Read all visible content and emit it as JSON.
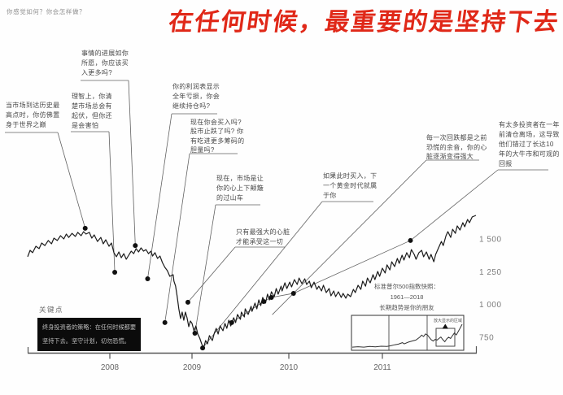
{
  "header": {
    "question": "你感觉如何？你会怎样做？"
  },
  "title": {
    "text": "在任何时候，最重要的是坚持下去",
    "color": "#e02818"
  },
  "key_point": {
    "label": "关键点",
    "text": "终身投资者的策略：在任何时候都要\n坚持下去。坚守计划，切勿恐慌。"
  },
  "chart_data": {
    "type": "line",
    "title": "在任何时候，最重要的是坚持下去",
    "xlabel": "",
    "ylabel": "",
    "x_range": [
      2007,
      2012
    ],
    "ylim": [
      640,
      1700
    ],
    "x_ticks": [
      2008,
      2009,
      2010,
      2011
    ],
    "y_ticks": [
      {
        "value": 1500,
        "label": "1 500"
      },
      {
        "value": 1250,
        "label": "1 250"
      },
      {
        "value": 1000,
        "label": "1 000"
      },
      {
        "value": 750,
        "label": "750"
      }
    ],
    "series": [
      {
        "name": "标准普尔500指数",
        "points": [
          [
            2007.0,
            1364
          ],
          [
            2007.03,
            1413
          ],
          [
            2007.06,
            1395
          ],
          [
            2007.1,
            1444
          ],
          [
            2007.14,
            1426
          ],
          [
            2007.17,
            1469
          ],
          [
            2007.21,
            1450
          ],
          [
            2007.25,
            1488
          ],
          [
            2007.29,
            1463
          ],
          [
            2007.32,
            1506
          ],
          [
            2007.36,
            1488
          ],
          [
            2007.4,
            1525
          ],
          [
            2007.44,
            1500
          ],
          [
            2007.47,
            1537
          ],
          [
            2007.5,
            1512
          ],
          [
            2007.54,
            1543
          ],
          [
            2007.58,
            1519
          ],
          [
            2007.61,
            1550
          ],
          [
            2007.65,
            1525
          ],
          [
            2007.68,
            1556
          ],
          [
            2007.71,
            1537
          ],
          [
            2007.75,
            1550
          ],
          [
            2007.78,
            1506
          ],
          [
            2007.81,
            1531
          ],
          [
            2007.85,
            1481
          ],
          [
            2007.89,
            1512
          ],
          [
            2007.92,
            1463
          ],
          [
            2007.95,
            1494
          ],
          [
            2007.99,
            1444
          ],
          [
            2008.02,
            1469
          ],
          [
            2008.05,
            1395
          ],
          [
            2008.08,
            1364
          ],
          [
            2008.11,
            1401
          ],
          [
            2008.14,
            1357
          ],
          [
            2008.17,
            1388
          ],
          [
            2008.2,
            1345
          ],
          [
            2008.23,
            1376
          ],
          [
            2008.26,
            1407
          ],
          [
            2008.29,
            1388
          ],
          [
            2008.32,
            1426
          ],
          [
            2008.35,
            1401
          ],
          [
            2008.38,
            1432
          ],
          [
            2008.41,
            1407
          ],
          [
            2008.44,
            1419
          ],
          [
            2008.47,
            1388
          ],
          [
            2008.5,
            1407
          ],
          [
            2008.52,
            1370
          ],
          [
            2008.55,
            1395
          ],
          [
            2008.58,
            1351
          ],
          [
            2008.61,
            1370
          ],
          [
            2008.64,
            1320
          ],
          [
            2008.67,
            1283
          ],
          [
            2008.7,
            1258
          ],
          [
            2008.73,
            1215
          ],
          [
            2008.77,
            1227
          ],
          [
            2008.78,
            1178
          ],
          [
            2008.8,
            1141
          ],
          [
            2008.82,
            1060
          ],
          [
            2008.84,
            967
          ],
          [
            2008.86,
            893
          ],
          [
            2008.88,
            942
          ],
          [
            2008.9,
            880
          ],
          [
            2008.92,
            942
          ],
          [
            2008.94,
            899
          ],
          [
            2008.96,
            831
          ],
          [
            2008.98,
            874
          ],
          [
            2009.0,
            856
          ],
          [
            2009.02,
            800
          ],
          [
            2009.04,
            837
          ],
          [
            2009.06,
            775
          ],
          [
            2009.08,
            744
          ],
          [
            2009.1,
            700
          ],
          [
            2009.12,
            669
          ],
          [
            2009.14,
            725
          ],
          [
            2009.16,
            700
          ],
          [
            2009.18,
            763
          ],
          [
            2009.21,
            725
          ],
          [
            2009.23,
            781
          ],
          [
            2009.25,
            818
          ],
          [
            2009.27,
            775
          ],
          [
            2009.29,
            837
          ],
          [
            2009.32,
            800
          ],
          [
            2009.34,
            856
          ],
          [
            2009.36,
            818
          ],
          [
            2009.38,
            880
          ],
          [
            2009.4,
            837
          ],
          [
            2009.43,
            899
          ],
          [
            2009.45,
            862
          ],
          [
            2009.47,
            924
          ],
          [
            2009.5,
            887
          ],
          [
            2009.51,
            942
          ],
          [
            2009.54,
            905
          ],
          [
            2009.55,
            967
          ],
          [
            2009.58,
            924
          ],
          [
            2009.61,
            986
          ],
          [
            2009.62,
            948
          ],
          [
            2009.65,
            1011
          ],
          [
            2009.67,
            967
          ],
          [
            2009.69,
            1035
          ],
          [
            2009.71,
            992
          ],
          [
            2009.73,
            1054
          ],
          [
            2009.76,
            1011
          ],
          [
            2009.78,
            1079
          ],
          [
            2009.8,
            1035
          ],
          [
            2009.82,
            1097
          ],
          [
            2009.85,
            1060
          ],
          [
            2009.87,
            1122
          ],
          [
            2009.89,
            1079
          ],
          [
            2009.92,
            1140
          ],
          [
            2009.93,
            1103
          ],
          [
            2009.96,
            1165
          ],
          [
            2009.98,
            1122
          ],
          [
            2010.01,
            1171
          ],
          [
            2010.03,
            1134
          ],
          [
            2010.06,
            1190
          ],
          [
            2010.09,
            1153
          ],
          [
            2010.11,
            1202
          ],
          [
            2010.14,
            1159
          ],
          [
            2010.17,
            1196
          ],
          [
            2010.19,
            1153
          ],
          [
            2010.22,
            1178
          ],
          [
            2010.24,
            1128
          ],
          [
            2010.27,
            1171
          ],
          [
            2010.3,
            1116
          ],
          [
            2010.32,
            1140
          ],
          [
            2010.35,
            1103
          ],
          [
            2010.37,
            1147
          ],
          [
            2010.4,
            1091
          ],
          [
            2010.43,
            1122
          ],
          [
            2010.45,
            1066
          ],
          [
            2010.48,
            1103
          ],
          [
            2010.5,
            1060
          ],
          [
            2010.53,
            1097
          ],
          [
            2010.56,
            1054
          ],
          [
            2010.58,
            1085
          ],
          [
            2010.61,
            1048
          ],
          [
            2010.63,
            1079
          ],
          [
            2010.66,
            1060
          ],
          [
            2010.69,
            1116
          ],
          [
            2010.71,
            1091
          ],
          [
            2010.74,
            1147
          ],
          [
            2010.77,
            1116
          ],
          [
            2010.79,
            1178
          ],
          [
            2010.82,
            1140
          ],
          [
            2010.84,
            1202
          ],
          [
            2010.87,
            1165
          ],
          [
            2010.9,
            1227
          ],
          [
            2010.92,
            1190
          ],
          [
            2010.95,
            1252
          ],
          [
            2010.97,
            1215
          ],
          [
            2011.0,
            1277
          ],
          [
            2011.03,
            1240
          ],
          [
            2011.05,
            1302
          ],
          [
            2011.08,
            1264
          ],
          [
            2011.1,
            1326
          ],
          [
            2011.13,
            1289
          ],
          [
            2011.16,
            1351
          ],
          [
            2011.18,
            1314
          ],
          [
            2011.21,
            1376
          ],
          [
            2011.23,
            1339
          ],
          [
            2011.26,
            1395
          ],
          [
            2011.29,
            1357
          ],
          [
            2011.31,
            1419
          ],
          [
            2011.34,
            1382
          ],
          [
            2011.36,
            1345
          ],
          [
            2011.39,
            1395
          ],
          [
            2011.42,
            1413
          ],
          [
            2011.44,
            1364
          ],
          [
            2011.47,
            1401
          ],
          [
            2011.5,
            1345
          ],
          [
            2011.52,
            1382
          ],
          [
            2011.55,
            1326
          ],
          [
            2011.57,
            1382
          ],
          [
            2011.6,
            1432
          ],
          [
            2011.63,
            1481
          ],
          [
            2011.65,
            1450
          ],
          [
            2011.68,
            1525
          ],
          [
            2011.7,
            1556
          ],
          [
            2011.73,
            1512
          ],
          [
            2011.75,
            1574
          ],
          [
            2011.78,
            1543
          ],
          [
            2011.8,
            1599
          ],
          [
            2011.83,
            1568
          ],
          [
            2011.86,
            1624
          ],
          [
            2011.88,
            1593
          ],
          [
            2011.91,
            1649
          ],
          [
            2011.93,
            1624
          ],
          [
            2011.96,
            1668
          ],
          [
            2012.0,
            1680
          ]
        ]
      }
    ],
    "markers": [
      {
        "id": "D1",
        "year": 2007.7,
        "value": 1581
      },
      {
        "id": "D2",
        "year": 2008.06,
        "value": 1246
      },
      {
        "id": "D3",
        "year": 2008.31,
        "value": 1450
      },
      {
        "id": "D4",
        "year": 2008.46,
        "value": 1196
      },
      {
        "id": "D5",
        "year": 2008.67,
        "value": 862
      },
      {
        "id": "D6",
        "year": 2008.95,
        "value": 1017
      },
      {
        "id": "D7",
        "year": 2009.03,
        "value": 781
      },
      {
        "id": "D8",
        "year": 2009.11,
        "value": 669
      },
      {
        "id": "D9",
        "year": 2009.41,
        "value": 862
      },
      {
        "id": "D10",
        "year": 2009.74,
        "value": 1023
      },
      {
        "id": "D11",
        "year": 2009.82,
        "value": 1054
      },
      {
        "id": "D12",
        "year": 2010.05,
        "value": 1085
      },
      {
        "id": "D13",
        "year": 2011.3,
        "value": 1488
      }
    ],
    "annotations": [
      {
        "id": "a1",
        "marker": "D1",
        "text": "当市场到达历史最\n高点时，你仿佛置\n身于世界之巅"
      },
      {
        "id": "a2",
        "marker": "D3",
        "text": "事情的进展如你\n所愿，你应该买\n入更多吗?"
      },
      {
        "id": "a3",
        "marker": "D2",
        "text": "理智上，你清\n楚市场总会有\n起伏，但你还\n是会害怕"
      },
      {
        "id": "a4",
        "marker": "D4",
        "text": "你的利润表显示\n全年亏损，你会\n继续持仓吗?"
      },
      {
        "id": "a5",
        "marker": "D5",
        "text": "现在你会买入吗?\n股市止跌了吗? 你\n有吃进更多筹码的\n胆量吗?"
      },
      {
        "id": "a6",
        "marker": "D7",
        "text": "现在，市场是让\n你的心上下颠簸\n的过山车"
      },
      {
        "id": "a7",
        "marker": "D6",
        "text": "只有最强大的心脏\n才能承受这一切"
      },
      {
        "id": "a8",
        "marker": "D8",
        "text": "如果此时买入，下\n一个黄金时代就属\n于你"
      },
      {
        "id": "a9",
        "marker": "D12",
        "text": "每一次回跌都是之前\n恐慌的余音，你的心\n脏逐渐变得强大"
      },
      {
        "id": "a10",
        "marker": "D13",
        "text": "有太多投资者在一年\n前清仓离场，这导致\n他们错过了长达10\n年的大牛市和可观的\n回报"
      }
    ],
    "inset": {
      "type": "line",
      "caption": "标准普尔500指数快照：\n1961—2018\n长期趋势是你的朋友",
      "zoom_label": "放大显示的区域",
      "x_range": [
        1961,
        2018
      ],
      "points": [
        [
          1961,
          0.03
        ],
        [
          1964,
          0.05
        ],
        [
          1967,
          0.03
        ],
        [
          1970,
          0.06
        ],
        [
          1973,
          0.04
        ],
        [
          1976,
          0.07
        ],
        [
          1979,
          0.06
        ],
        [
          1981,
          0.09
        ],
        [
          1983,
          0.13
        ],
        [
          1985,
          0.16
        ],
        [
          1987,
          0.22
        ],
        [
          1988,
          0.17
        ],
        [
          1990,
          0.24
        ],
        [
          1992,
          0.29
        ],
        [
          1994,
          0.33
        ],
        [
          1996,
          0.45
        ],
        [
          1997,
          0.54
        ],
        [
          1998,
          0.48
        ],
        [
          1999,
          0.59
        ],
        [
          2000,
          0.55
        ],
        [
          2001,
          0.44
        ],
        [
          2002,
          0.34
        ],
        [
          2003,
          0.29
        ],
        [
          2004,
          0.36
        ],
        [
          2005,
          0.33
        ],
        [
          2006,
          0.4
        ],
        [
          2007,
          0.46
        ],
        [
          2008,
          0.35
        ],
        [
          2009,
          0.26
        ],
        [
          2010,
          0.38
        ],
        [
          2011,
          0.45
        ],
        [
          2012,
          0.4
        ],
        [
          2013,
          0.52
        ],
        [
          2014,
          0.63
        ],
        [
          2015,
          0.55
        ],
        [
          2016,
          0.7
        ],
        [
          2017,
          0.84
        ],
        [
          2018,
          1.0
        ]
      ]
    }
  }
}
